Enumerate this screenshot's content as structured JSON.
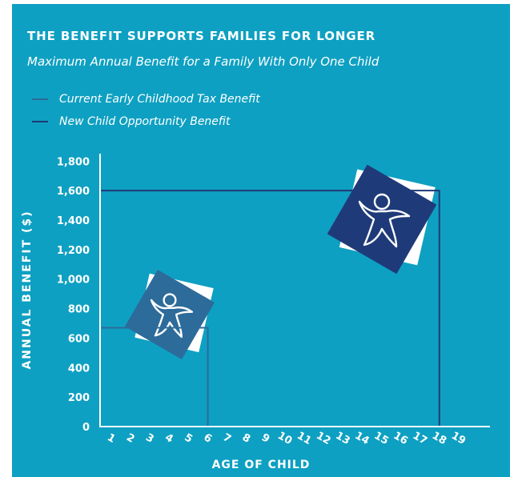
{
  "colors": {
    "background": "#0ea0c2",
    "current": "#2d6b9a",
    "new": "#1f3a78",
    "axis": "#ffffff",
    "text": "#ffffff"
  },
  "icons": [
    "child-figure-icon",
    "child-figure-icon"
  ],
  "chart_data": {
    "type": "line",
    "title": "THE BENEFIT SUPPORTS FAMILIES FOR LONGER",
    "subtitle": "Maximum Annual Benefit for a Family With Only One Child",
    "xlabel": "AGE OF CHILD",
    "ylabel": "ANNUAL BENEFIT ($)",
    "x": [
      1,
      2,
      3,
      4,
      5,
      6,
      7,
      8,
      9,
      10,
      11,
      12,
      13,
      14,
      15,
      16,
      17,
      18,
      19
    ],
    "x_tick_labels": [
      "1",
      "2",
      "3",
      "4",
      "5",
      "6",
      "7",
      "8",
      "9",
      "10",
      "11",
      "12",
      "13",
      "14",
      "15",
      "16",
      "17",
      "18",
      "19"
    ],
    "xlim": [
      1,
      19
    ],
    "ylim": [
      0,
      1800
    ],
    "y_ticks": [
      0,
      200,
      400,
      600,
      800,
      1000,
      1200,
      1400,
      1600,
      1800
    ],
    "y_tick_labels": [
      "0",
      "200",
      "400",
      "600",
      "800",
      "1,000",
      "1,200",
      "1,400",
      "1,600",
      "1,800"
    ],
    "grid": false,
    "legend_position": "top-left",
    "series": [
      {
        "name": "Current Early Childhood Tax Benefit",
        "color": "#2d6b9a",
        "values": [
          670,
          670,
          670,
          670,
          670,
          670,
          0,
          0,
          0,
          0,
          0,
          0,
          0,
          0,
          0,
          0,
          0,
          0,
          0
        ]
      },
      {
        "name": "New Child Opportunity Benefit",
        "color": "#1f3a78",
        "values": [
          1600,
          1600,
          1600,
          1600,
          1600,
          1600,
          1600,
          1600,
          1600,
          1600,
          1600,
          1600,
          1600,
          1600,
          1600,
          1600,
          1600,
          1600,
          0
        ]
      }
    ]
  }
}
